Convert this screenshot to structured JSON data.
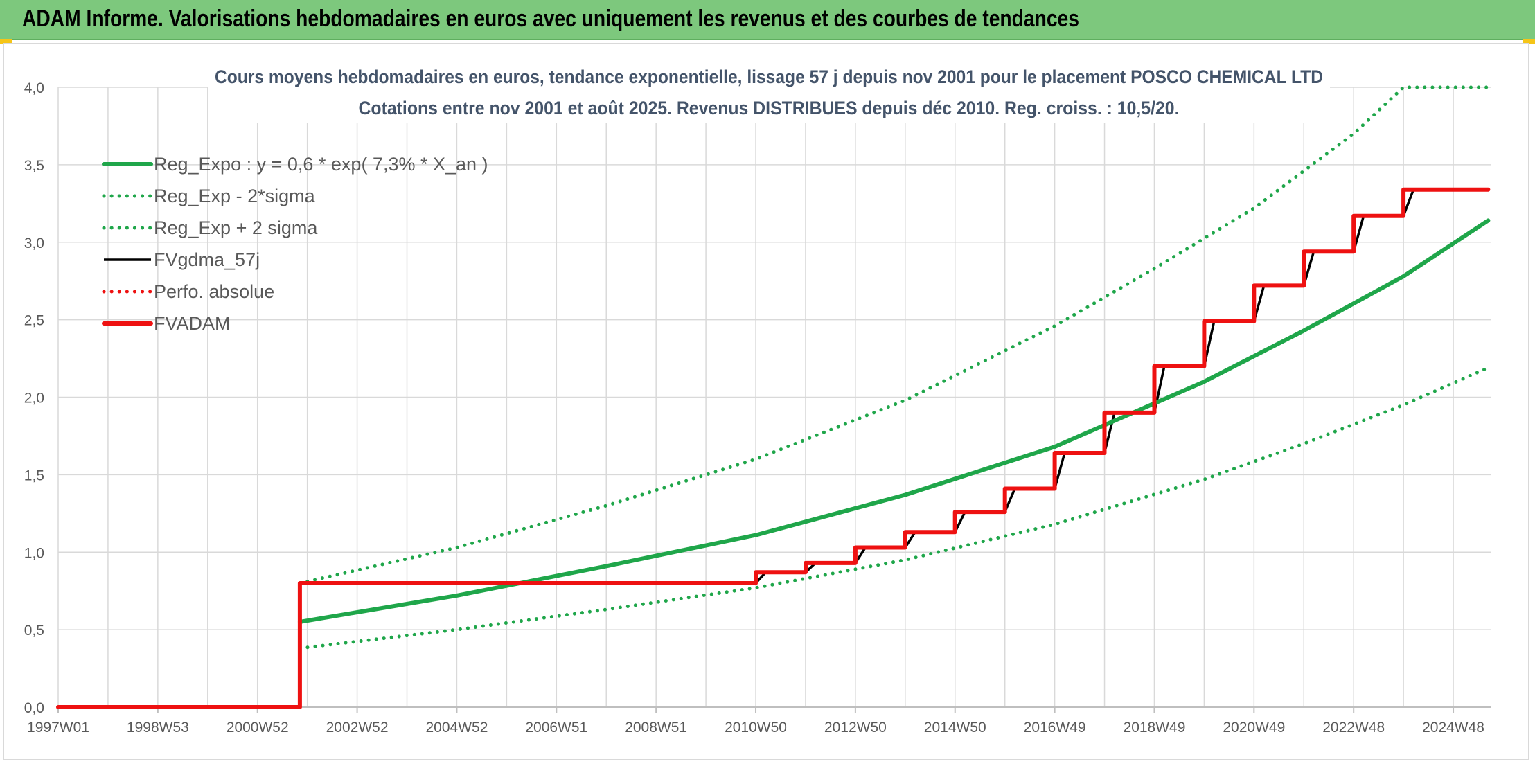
{
  "header": {
    "title": "ADAM Informe. Valorisations hebdomadaires en euros avec uniquement les revenus et des courbes de tendances"
  },
  "colors": {
    "header_bg": "#7dc87d",
    "trend_green": "#1fa64a",
    "fvgdma_black": "#000000",
    "fvadam_red": "#ee1111",
    "perfo_red": "#ee1111",
    "grid": "#d9d9d9"
  },
  "chart_data": {
    "type": "line",
    "title": "Cours moyens hebdomadaires en euros, tendance exponentielle, lissage 57 j depuis nov 2001 pour le placement POSCO CHEMICAL LTD",
    "subtitle": "Cotations entre nov 2001 et août 2025. Revenus DISTRIBUES depuis déc 2010. Reg. croiss. : 10,5/20.",
    "xlabel": "",
    "ylabel": "",
    "x_range": [
      1997.0,
      2025.75
    ],
    "ylim": [
      0,
      4.0
    ],
    "y_ticks": [
      "0,0",
      "0,5",
      "1,0",
      "1,5",
      "2,0",
      "2,5",
      "3,0",
      "3,5",
      "4,0"
    ],
    "x_ticks": [
      {
        "label": "1997W01",
        "year": 1997.0
      },
      {
        "label": "1998W53",
        "year": 1999.0
      },
      {
        "label": "2000W52",
        "year": 2001.0
      },
      {
        "label": "2002W52",
        "year": 2003.0
      },
      {
        "label": "2004W52",
        "year": 2005.0
      },
      {
        "label": "2006W51",
        "year": 2007.0
      },
      {
        "label": "2008W51",
        "year": 2009.0
      },
      {
        "label": "2010W50",
        "year": 2011.0
      },
      {
        "label": "2012W50",
        "year": 2013.0
      },
      {
        "label": "2014W50",
        "year": 2015.0
      },
      {
        "label": "2016W49",
        "year": 2017.0
      },
      {
        "label": "2018W49",
        "year": 2019.0
      },
      {
        "label": "2020W49",
        "year": 2021.0
      },
      {
        "label": "2022W48",
        "year": 2023.0
      },
      {
        "label": "2024W48",
        "year": 2025.0
      }
    ],
    "grid": true,
    "legend_position": "top-left",
    "series": [
      {
        "name": "Reg_Expo : y = 0,6 * exp( 7,3% *  X_an )",
        "style": "solid-thick",
        "color": "#1fa64a",
        "points": [
          [
            2001.85,
            0.55
          ],
          [
            2005,
            0.72
          ],
          [
            2008,
            0.91
          ],
          [
            2011,
            1.11
          ],
          [
            2014,
            1.37
          ],
          [
            2017,
            1.68
          ],
          [
            2020,
            2.1
          ],
          [
            2022,
            2.43
          ],
          [
            2024,
            2.78
          ],
          [
            2025.7,
            3.14
          ]
        ]
      },
      {
        "name": "Reg_Exp - 2*sigma",
        "style": "dotted",
        "color": "#1fa64a",
        "points": [
          [
            2001.85,
            0.38
          ],
          [
            2005,
            0.5
          ],
          [
            2008,
            0.63
          ],
          [
            2011,
            0.77
          ],
          [
            2014,
            0.95
          ],
          [
            2017,
            1.18
          ],
          [
            2020,
            1.47
          ],
          [
            2022,
            1.7
          ],
          [
            2024,
            1.95
          ],
          [
            2025.7,
            2.19
          ]
        ]
      },
      {
        "name": "Reg_Exp + 2 sigma",
        "style": "dotted",
        "color": "#1fa64a",
        "points": [
          [
            2001.85,
            0.8
          ],
          [
            2005,
            1.03
          ],
          [
            2008,
            1.3
          ],
          [
            2011,
            1.6
          ],
          [
            2014,
            1.98
          ],
          [
            2017,
            2.46
          ],
          [
            2019,
            2.83
          ],
          [
            2021,
            3.22
          ],
          [
            2023,
            3.7
          ],
          [
            2024,
            4.0
          ],
          [
            2025.7,
            4.0
          ]
        ]
      },
      {
        "name": "FVgdma_57j",
        "style": "solid",
        "color": "#000000",
        "points": [
          [
            1997.0,
            0.0
          ],
          [
            2001.85,
            0.0
          ],
          [
            2001.85,
            0.8
          ],
          [
            2011.0,
            0.8
          ],
          [
            2011.2,
            0.87
          ],
          [
            2012.0,
            0.87
          ],
          [
            2012.2,
            0.93
          ],
          [
            2013.0,
            0.93
          ],
          [
            2013.2,
            1.03
          ],
          [
            2014.0,
            1.03
          ],
          [
            2014.2,
            1.13
          ],
          [
            2015.0,
            1.13
          ],
          [
            2015.2,
            1.26
          ],
          [
            2016.0,
            1.26
          ],
          [
            2016.2,
            1.41
          ],
          [
            2017.0,
            1.41
          ],
          [
            2017.2,
            1.64
          ],
          [
            2018.0,
            1.64
          ],
          [
            2018.2,
            1.9
          ],
          [
            2019.0,
            1.9
          ],
          [
            2019.2,
            2.2
          ],
          [
            2020.0,
            2.2
          ],
          [
            2020.2,
            2.49
          ],
          [
            2021.0,
            2.49
          ],
          [
            2021.2,
            2.72
          ],
          [
            2022.0,
            2.72
          ],
          [
            2022.2,
            2.94
          ],
          [
            2023.0,
            2.94
          ],
          [
            2023.2,
            3.17
          ],
          [
            2024.0,
            3.17
          ],
          [
            2024.2,
            3.34
          ],
          [
            2025.7,
            3.34
          ]
        ]
      },
      {
        "name": "Perfo. absolue",
        "style": "dotted",
        "color": "#ee1111",
        "points": []
      },
      {
        "name": "FVADAM",
        "style": "solid-thick",
        "color": "#ee1111",
        "points": [
          [
            1997.0,
            0.0
          ],
          [
            2001.85,
            0.0
          ],
          [
            2001.85,
            0.8
          ],
          [
            2011.0,
            0.8
          ],
          [
            2011.0,
            0.87
          ],
          [
            2012.0,
            0.87
          ],
          [
            2012.0,
            0.93
          ],
          [
            2013.0,
            0.93
          ],
          [
            2013.0,
            1.03
          ],
          [
            2014.0,
            1.03
          ],
          [
            2014.0,
            1.13
          ],
          [
            2015.0,
            1.13
          ],
          [
            2015.0,
            1.26
          ],
          [
            2016.0,
            1.26
          ],
          [
            2016.0,
            1.41
          ],
          [
            2017.0,
            1.41
          ],
          [
            2017.0,
            1.64
          ],
          [
            2018.0,
            1.64
          ],
          [
            2018.0,
            1.9
          ],
          [
            2019.0,
            1.9
          ],
          [
            2019.0,
            2.2
          ],
          [
            2020.0,
            2.2
          ],
          [
            2020.0,
            2.49
          ],
          [
            2021.0,
            2.49
          ],
          [
            2021.0,
            2.72
          ],
          [
            2022.0,
            2.72
          ],
          [
            2022.0,
            2.94
          ],
          [
            2023.0,
            2.94
          ],
          [
            2023.0,
            3.17
          ],
          [
            2024.0,
            3.17
          ],
          [
            2024.0,
            3.34
          ],
          [
            2025.7,
            3.34
          ]
        ]
      }
    ]
  }
}
